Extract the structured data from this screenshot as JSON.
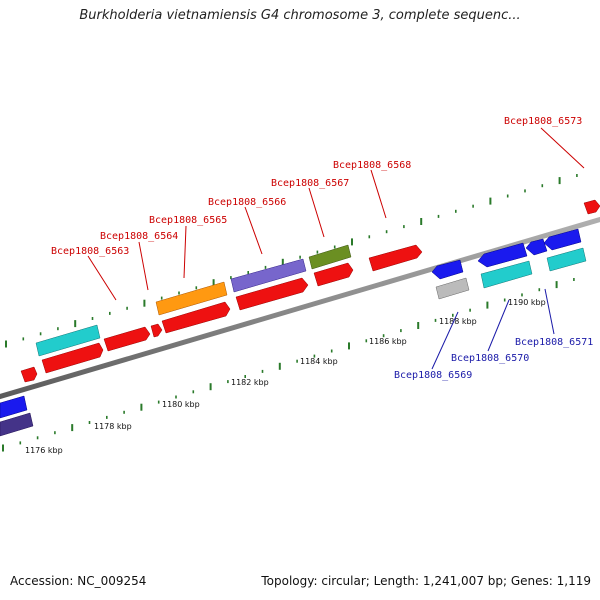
{
  "title": "Burkholderia vietnamiensis G4 chromosome 3, complete sequenc...",
  "footer": {
    "accession": "Accession: NC_009254",
    "summary": "Topology: circular; Length: 1,241,007 bp; Genes: 1,119"
  },
  "colors": {
    "backbone": "#808080",
    "tick": "#2a7a2a",
    "forward_label": "#cc0000",
    "reverse_label": "#1a1aa8",
    "red": "#ee1111",
    "cyan": "#22cccc",
    "orange": "#ff9911",
    "purple": "#7766cc",
    "olive": "#6b8f22",
    "blue": "#1a1aee",
    "navy": "#443388",
    "gray": "#bbbbbb"
  },
  "axis": {
    "tick_labels": [
      "1176 kbp",
      "1178 kbp",
      "1180 kbp",
      "1182 kbp",
      "1184 kbp",
      "1186 kbp",
      "1188 kbp",
      "1190 kbp"
    ]
  },
  "genes": {
    "forward_labels": [
      "Bcep1808_6563",
      "Bcep1808_6564",
      "Bcep1808_6565",
      "Bcep1808_6566",
      "Bcep1808_6567",
      "Bcep1808_6568",
      "Bcep1808_6573"
    ],
    "reverse_labels": [
      "Bcep1808_6569",
      "Bcep1808_6570",
      "Bcep1808_6571"
    ]
  }
}
